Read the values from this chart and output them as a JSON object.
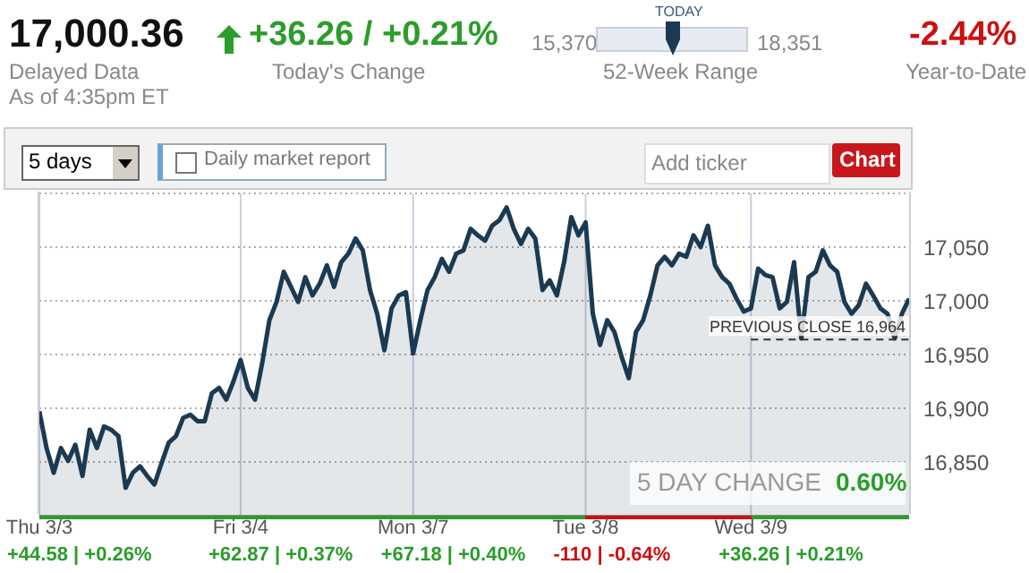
{
  "chart_data": {
    "type": "area",
    "title": "17,000.36",
    "annotations": [
      "Delayed Data",
      "As of 4:35pm ET",
      "+36.26 / +0.21%",
      "Today's Change",
      "TODAY",
      "15,370",
      "18,351",
      "52-Week Range",
      "-2.44%",
      "Year-to-Date",
      "5 days",
      "Daily market report",
      "Add ticker",
      "Chart",
      "+44.58 | +0.26%",
      "+62.87 | +0.37%",
      "+67.18 | +0.40%",
      "-110 | -0.64%",
      "+36.26 | +0.21%",
      "5 DAY CHANGE",
      "0.60%"
    ],
    "categories": [
      "Thu 3/3",
      null,
      null,
      null,
      null,
      null,
      null,
      null,
      null,
      null,
      null,
      null,
      null,
      null,
      null,
      null,
      null,
      null,
      null,
      null,
      null,
      null,
      null,
      null,
      null,
      null,
      null,
      null,
      "Fri 3/4",
      null,
      null,
      null,
      null,
      null,
      null,
      null,
      null,
      null,
      null,
      null,
      null,
      null,
      null,
      null,
      null,
      null,
      null,
      null,
      null,
      null,
      null,
      null,
      "Mon 3/7",
      null,
      null,
      null,
      null,
      null,
      null,
      null,
      null,
      null,
      null,
      null,
      null,
      null,
      null,
      null,
      null,
      null,
      null,
      null,
      null,
      null,
      null,
      null,
      "Tue 3/8",
      null,
      null,
      null,
      null,
      null,
      null,
      null,
      null,
      null,
      null,
      null,
      null,
      null,
      null,
      null,
      null,
      null,
      null,
      null,
      null,
      null,
      null,
      "Wed 3/9",
      null,
      null,
      null,
      null,
      null,
      null,
      null,
      null,
      null,
      null,
      null,
      null,
      null,
      null,
      null,
      null,
      null,
      null,
      null,
      null,
      null,
      null
    ],
    "series": [
      {
        "color": "#1b3a52",
        "values": [
          16897,
          16863,
          16840,
          16863,
          16851,
          16866,
          16837,
          16880,
          16863,
          16883,
          16880,
          16874,
          16826,
          16840,
          16846,
          16837,
          16829,
          16849,
          16868,
          16874,
          16891,
          16894,
          16888,
          16888,
          16914,
          16919,
          16908,
          16925,
          16945,
          16919,
          16908,
          16942,
          16982,
          16999,
          17027,
          17013,
          16999,
          17022,
          17005,
          17016,
          17033,
          17013,
          17036,
          17044,
          17058,
          17047,
          17010,
          16988,
          16954,
          16993,
          17005,
          17008,
          16951,
          16982,
          17010,
          17022,
          17039,
          17027,
          17044,
          17047,
          17067,
          17061,
          17056,
          17070,
          17075,
          17087,
          17067,
          17053,
          17067,
          17058,
          17010,
          17019,
          17005,
          17036,
          17078,
          17061,
          17073,
          16988,
          16959,
          16982,
          16971,
          16948,
          16928,
          16971,
          16982,
          17005,
          17033,
          17041,
          17033,
          17044,
          17041,
          17061,
          17050,
          17070,
          17033,
          17022,
          17016,
          17002,
          16990,
          16993,
          17030,
          17024,
          17022,
          16993,
          16999,
          17036,
          16965,
          17022,
          17027,
          17047,
          17033,
          17027,
          16999,
          16988,
          16996,
          17016,
          17005,
          16993,
          16988,
          16965,
          16988,
          17002
        ]
      }
    ],
    "ylim": [
      16800,
      17100
    ],
    "yticks": [
      {
        "value": 16850,
        "label": "16,850"
      },
      {
        "value": 16900,
        "label": "16,900"
      },
      {
        "value": 16950,
        "label": "16,950"
      },
      {
        "value": 17000,
        "label": "17,000"
      },
      {
        "value": 17050,
        "label": "17,050"
      }
    ],
    "grid": true,
    "ref_lines": [
      {
        "axis": "y",
        "value": 16964,
        "label": "PREVIOUS CLOSE 16,964",
        "color": "#333333",
        "line_style": "dashed"
      }
    ]
  }
}
